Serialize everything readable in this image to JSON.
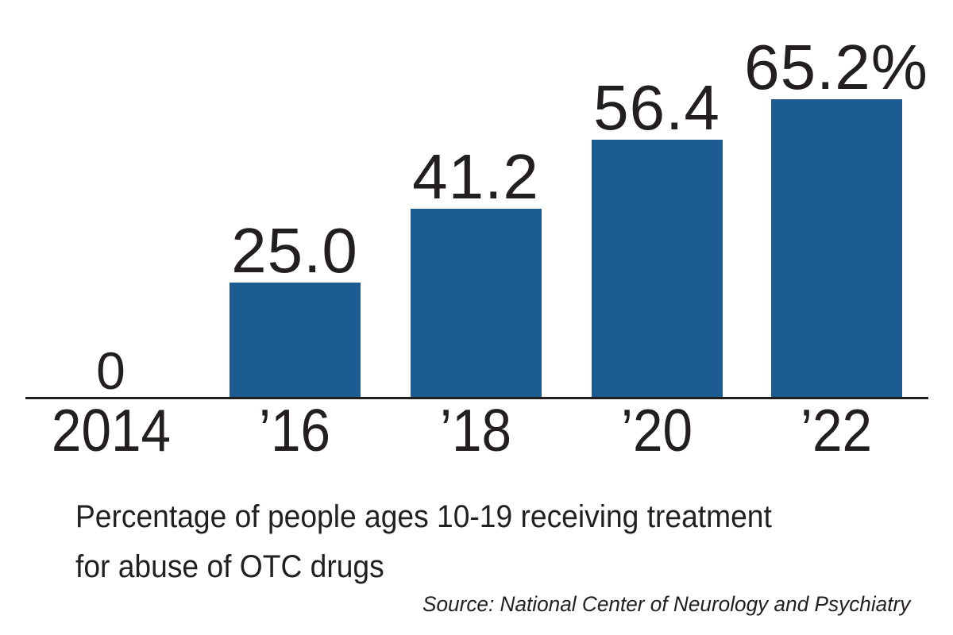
{
  "chart_data": {
    "type": "bar",
    "categories": [
      "2014",
      "’16",
      "’18",
      "’20",
      "’22"
    ],
    "values": [
      0,
      25.0,
      41.2,
      56.4,
      65.2
    ],
    "value_labels": [
      "0",
      "25.0",
      "41.2",
      "56.4",
      "65.2%"
    ],
    "unit": "%",
    "title": "Percentage of people ages 10-19 receiving treatment for abuse of OTC drugs",
    "xlabel": "",
    "ylabel": "",
    "ylim": [
      0,
      65.2
    ],
    "grid": false,
    "legend": false,
    "bar_color": "#1d5b93",
    "axis_color": "#231f20",
    "text_color": "#231f20"
  },
  "caption": {
    "line1": "Percentage of people ages 10-19 receiving treatment",
    "line2": "for abuse of OTC drugs"
  },
  "source": "Source: National Center of Neurology and Psychiatry"
}
